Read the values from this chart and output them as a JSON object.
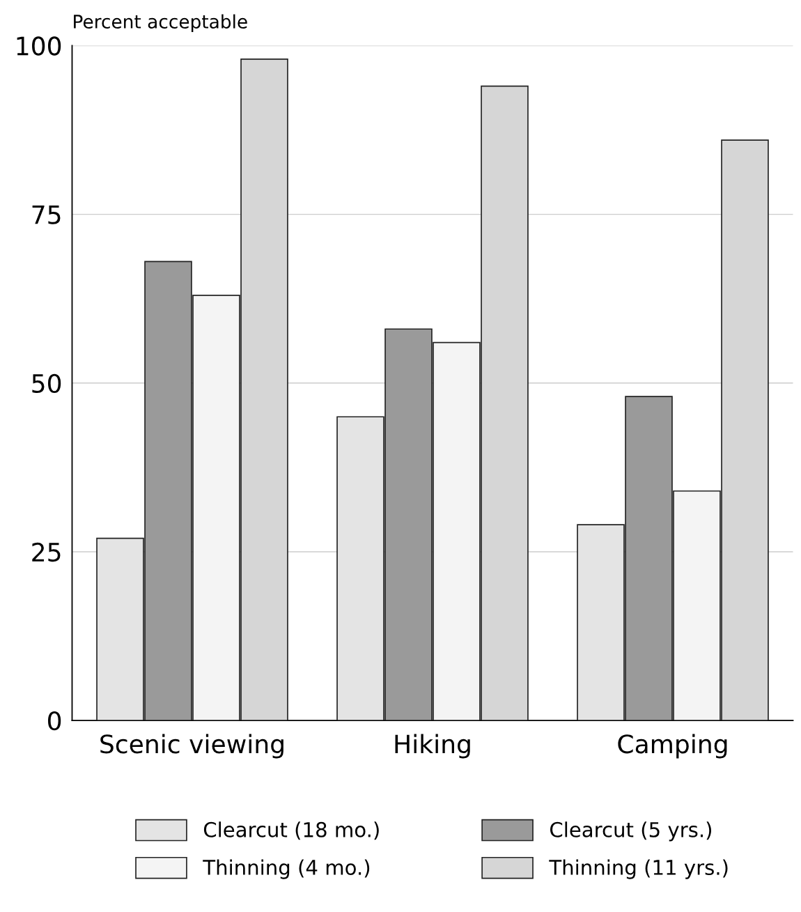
{
  "chart_data": {
    "type": "bar",
    "ylabel": "Percent acceptable",
    "categories": [
      "Scenic viewing",
      "Hiking",
      "Camping"
    ],
    "series": [
      {
        "name": "Clearcut (18 mo.)",
        "color": "#e4e4e4",
        "values": [
          27,
          45,
          29
        ]
      },
      {
        "name": "Clearcut (5 yrs.)",
        "color": "#9a9a9a",
        "values": [
          68,
          58,
          48
        ]
      },
      {
        "name": "Thinning (4 mo.)",
        "color": "#f4f4f4",
        "values": [
          63,
          56,
          34
        ]
      },
      {
        "name": "Thinning (11 yrs.)",
        "color": "#d6d6d6",
        "values": [
          98,
          94,
          86
        ]
      }
    ],
    "ylim": [
      0,
      100
    ],
    "yticks": [
      0,
      25,
      50,
      75,
      100
    ],
    "grid": "y",
    "legend": "bottom"
  }
}
